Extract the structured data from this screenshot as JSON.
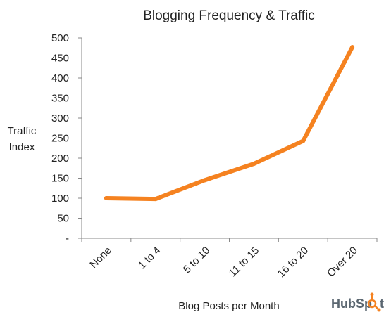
{
  "chart_data": {
    "type": "line",
    "title": "Blogging Frequency & Traffic",
    "xlabel": "Blog Posts per Month",
    "ylabel_lines": [
      "Traffic",
      "Index"
    ],
    "categories": [
      "None",
      "1 to 4",
      "5 to 10",
      "11 to 15",
      "16 to 20",
      "Over 20"
    ],
    "series": [
      {
        "values": [
          100,
          98,
          145,
          186,
          243,
          477
        ]
      }
    ],
    "yticks": [
      0,
      50,
      100,
      150,
      200,
      250,
      300,
      350,
      400,
      450,
      500
    ],
    "ytick_labels": [
      "-",
      "50",
      "100",
      "150",
      "200",
      "250",
      "300",
      "350",
      "400",
      "450",
      "500"
    ],
    "ylim": [
      0,
      500
    ],
    "grid": false,
    "line_color": "#f58220"
  },
  "branding": {
    "logo_text_a": "Hub",
    "logo_text_b": "Sp",
    "logo_text_c": "t",
    "logo_color": "#f58220"
  }
}
